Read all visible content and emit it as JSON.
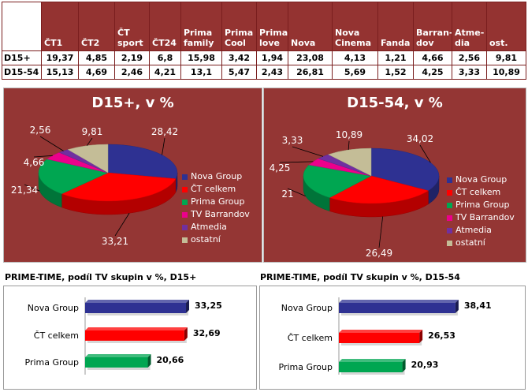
{
  "share_table": {
    "channels": [
      "ČT1",
      "ČT2",
      "ČT\nsport",
      "ČT24",
      "Prima\nfamily",
      "Prima\nCool",
      "Prima\nlove",
      "Nova",
      "Nova\nCinema",
      "Fanda",
      "Barran-\ndov",
      "Atme-\ndia",
      "ost."
    ],
    "rows": [
      {
        "label": "D15+",
        "values": [
          "19,37",
          "4,85",
          "2,19",
          "6,8",
          "15,98",
          "3,42",
          "1,94",
          "23,08",
          "4,13",
          "1,21",
          "4,66",
          "2,56",
          "9,81"
        ]
      },
      {
        "label": "D15-54",
        "values": [
          "15,13",
          "4,69",
          "2,46",
          "4,21",
          "13,1",
          "5,47",
          "2,43",
          "26,81",
          "5,69",
          "1,52",
          "4,25",
          "3,33",
          "10,89"
        ]
      }
    ]
  },
  "chart_data": [
    {
      "type": "pie",
      "title": "D15+, v %",
      "labels": [
        "Nova Group",
        "ČT celkem",
        "Prima Group",
        "TV Barrandov",
        "Atmedia",
        "ostatní"
      ],
      "values": [
        28.42,
        33.21,
        21.34,
        4.66,
        2.56,
        9.81
      ],
      "value_labels": [
        "28,42",
        "33,21",
        "21,34",
        "4,66",
        "2,56",
        "9,81"
      ],
      "colors": [
        "#2e3192",
        "#ff0000",
        "#00a651",
        "#ec008c",
        "#7030a0",
        "#c4bd97"
      ],
      "legend": "right"
    },
    {
      "type": "pie",
      "title": "D15-54, v %",
      "labels": [
        "Nova Group",
        "ČT celkem",
        "Prima Group",
        "TV Barrandov",
        "Atmedia",
        "ostatní"
      ],
      "values": [
        34.02,
        26.49,
        21,
        4.25,
        3.33,
        10.89
      ],
      "value_labels": [
        "34,02",
        "26,49",
        "21",
        "4,25",
        "3,33",
        "10,89"
      ],
      "colors": [
        "#2e3192",
        "#ff0000",
        "#00a651",
        "#ec008c",
        "#7030a0",
        "#c4bd97"
      ],
      "legend": "right"
    },
    {
      "type": "bar",
      "orientation": "horizontal",
      "title": "PRIME-TIME, podíl TV skupin v %, D15+",
      "categories": [
        "Nova Group",
        "ČT celkem",
        "Prima Group"
      ],
      "values": [
        33.25,
        32.69,
        20.66
      ],
      "value_labels": [
        "33,25",
        "32,69",
        "20,66"
      ],
      "colors": [
        "#2e3192",
        "#ff0000",
        "#00a651"
      ]
    },
    {
      "type": "bar",
      "orientation": "horizontal",
      "title": "PRIME-TIME, podíl TV skupin v %, D15-54",
      "categories": [
        "Nova Group",
        "ČT celkem",
        "Prima Group"
      ],
      "values": [
        38.41,
        26.53,
        20.93
      ],
      "value_labels": [
        "38,41",
        "26,53",
        "20,93"
      ],
      "colors": [
        "#2e3192",
        "#ff0000",
        "#00a651"
      ]
    }
  ]
}
